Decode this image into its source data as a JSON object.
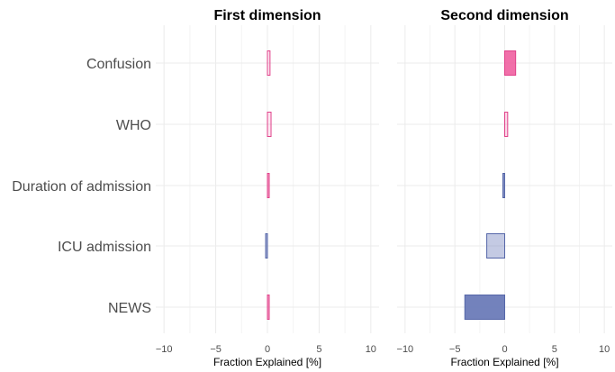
{
  "chart_data": {
    "type": "bar",
    "orientation": "horizontal",
    "categories": [
      "Confusion",
      "WHO",
      "Duration of admission",
      "ICU admission",
      "NEWS"
    ],
    "xlabel": "Fraction Explained [%]",
    "xlim": [
      -10,
      10
    ],
    "xticks": [
      -10,
      -5,
      0,
      5,
      10
    ],
    "grid": true,
    "colors": {
      "positive_fill": "#f05fa0",
      "positive_stroke": "#e0428a",
      "negative_fill": "#6b7bb8",
      "negative_stroke": "#5566a8"
    },
    "panels": [
      {
        "title": "First dimension",
        "values": [
          0.25,
          0.35,
          0.12,
          -0.05,
          0.12
        ],
        "fill_opacity": [
          0.15,
          0.15,
          0.6,
          0.6,
          0.6
        ]
      },
      {
        "title": "Second dimension",
        "values": [
          1.1,
          0.3,
          -0.1,
          -1.8,
          -4.0
        ],
        "fill_opacity": [
          0.9,
          0.25,
          0.8,
          0.4,
          0.95
        ]
      }
    ]
  }
}
